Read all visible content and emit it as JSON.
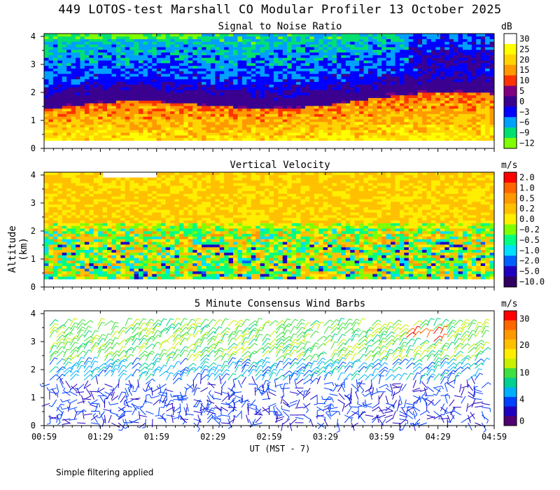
{
  "figure": {
    "title": "449 LOTOS-test Marshall CO Modular Profiler 13 October 2025",
    "ylabel": "Altitude (km)",
    "xlabel": "UT  (MST - 7)",
    "footnote": "Simple filtering applied"
  },
  "chart_data": [
    {
      "type": "heatmap",
      "title": "Signal to Noise Ratio",
      "x_ticks": [
        "00:59",
        "01:29",
        "01:59",
        "02:29",
        "02:59",
        "03:29",
        "03:59",
        "04:29",
        "04:59"
      ],
      "xlim": [
        "00:59",
        "04:59"
      ],
      "ylim": [
        0,
        4.1
      ],
      "y_ticks": [
        0,
        1,
        2,
        3,
        4
      ],
      "y_unit": "km",
      "colorbar": {
        "unit": "dB",
        "labels": [
          "30",
          "25",
          "20",
          "15",
          "10",
          "5",
          "0",
          "−3",
          "−6",
          "−9",
          "−12"
        ],
        "colors": [
          "#ffffff",
          "#ffff00",
          "#ffd400",
          "#ff9900",
          "#ff3300",
          "#800080",
          "#3a0090",
          "#0000ff",
          "#00a0ff",
          "#00e070",
          "#80ff00"
        ]
      },
      "profile": [
        {
          "alt_km": 4.0,
          "snr_db": -9
        },
        {
          "alt_km": 3.0,
          "snr_db": -3
        },
        {
          "alt_km": 2.5,
          "snr_db": 0
        },
        {
          "alt_km": 1.5,
          "snr_db": 10
        },
        {
          "alt_km": 0.8,
          "snr_db": 20
        },
        {
          "alt_km": 0.3,
          "snr_db": 25
        }
      ]
    },
    {
      "type": "heatmap",
      "title": "Vertical Velocity",
      "x_ticks": [
        "00:59",
        "01:29",
        "01:59",
        "02:29",
        "02:59",
        "03:29",
        "03:59",
        "04:29",
        "04:59"
      ],
      "xlim": [
        "00:59",
        "04:59"
      ],
      "ylim": [
        0,
        4.1
      ],
      "y_ticks": [
        0,
        1,
        2,
        3,
        4
      ],
      "y_unit": "km",
      "colorbar": {
        "unit": "m/s",
        "labels": [
          "2.0",
          "1.0",
          "0.5",
          "0.2",
          "0.0",
          "−0.2",
          "−0.5",
          "−1.0",
          "−2.0",
          "−5.0",
          "−10.0"
        ],
        "colors": [
          "#ff0000",
          "#ff6600",
          "#ff9900",
          "#ffc000",
          "#ffee00",
          "#80ff00",
          "#00ff80",
          "#00e0ff",
          "#0060ff",
          "#2000c0",
          "#300060"
        ]
      }
    },
    {
      "type": "scatter",
      "title": "5 Minute Consensus Wind Barbs",
      "x_ticks": [
        "00:59",
        "01:29",
        "01:59",
        "02:29",
        "02:59",
        "03:29",
        "03:59",
        "04:29",
        "04:59"
      ],
      "xlim": [
        "00:59",
        "04:59"
      ],
      "ylim": [
        0,
        4.1
      ],
      "y_ticks": [
        0,
        1,
        2,
        3,
        4
      ],
      "y_unit": "km",
      "colorbar": {
        "unit": "m/s",
        "labels": [
          "30",
          "20",
          "10",
          "4",
          "0"
        ],
        "colors": [
          "#ff0000",
          "#ff6600",
          "#ff9900",
          "#ffc000",
          "#ffee00",
          "#c8f000",
          "#40e040",
          "#00d090",
          "#00b0ff",
          "#0040ff",
          "#2000c0",
          "#500070"
        ]
      }
    }
  ]
}
